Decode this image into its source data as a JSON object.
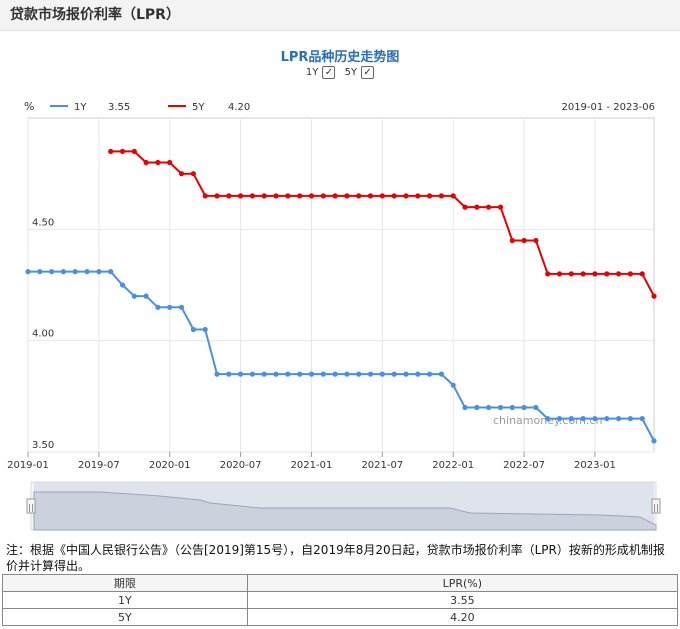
{
  "header": {
    "title": "贷款市场报价利率（LPR）"
  },
  "toggles": [
    {
      "label": "1Y",
      "checked": true
    },
    {
      "label": "5Y",
      "checked": true
    }
  ],
  "chart_data": {
    "type": "line",
    "title": "LPR品种历史走势图",
    "ylabel": "%",
    "date_range_label": "2019-01 - 2023-06",
    "ylim": [
      3.5,
      5.0
    ],
    "y_ticks": [
      "4.50",
      "4.00",
      "3.50"
    ],
    "x_ticks": [
      "2019-01",
      "2019-07",
      "2020-01",
      "2020-07",
      "2021-01",
      "2021-07",
      "2022-01",
      "2022-07",
      "2023-01"
    ],
    "watermark": "chinamoney.com.cn",
    "series": [
      {
        "name": "1Y",
        "legend_value": "3.55",
        "color": "#4a90e2",
        "x": [
          "2019-01",
          "2019-02",
          "2019-03",
          "2019-04",
          "2019-05",
          "2019-06",
          "2019-07",
          "2019-08",
          "2019-09",
          "2019-10",
          "2019-11",
          "2019-12",
          "2020-01",
          "2020-02",
          "2020-03",
          "2020-04",
          "2020-05",
          "2020-06",
          "2020-07",
          "2020-08",
          "2020-09",
          "2020-10",
          "2020-11",
          "2020-12",
          "2021-01",
          "2021-02",
          "2021-03",
          "2021-04",
          "2021-05",
          "2021-06",
          "2021-07",
          "2021-08",
          "2021-09",
          "2021-10",
          "2021-11",
          "2021-12",
          "2022-01",
          "2022-02",
          "2022-03",
          "2022-04",
          "2022-05",
          "2022-06",
          "2022-07",
          "2022-08",
          "2022-09",
          "2022-10",
          "2022-11",
          "2022-12",
          "2023-01",
          "2023-02",
          "2023-03",
          "2023-04",
          "2023-05",
          "2023-06"
        ],
        "values": [
          4.31,
          4.31,
          4.31,
          4.31,
          4.31,
          4.31,
          4.31,
          4.31,
          4.25,
          4.2,
          4.2,
          4.15,
          4.15,
          4.15,
          4.05,
          4.05,
          3.85,
          3.85,
          3.85,
          3.85,
          3.85,
          3.85,
          3.85,
          3.85,
          3.85,
          3.85,
          3.85,
          3.85,
          3.85,
          3.85,
          3.85,
          3.85,
          3.85,
          3.85,
          3.85,
          3.85,
          3.8,
          3.7,
          3.7,
          3.7,
          3.7,
          3.7,
          3.7,
          3.7,
          3.65,
          3.65,
          3.65,
          3.65,
          3.65,
          3.65,
          3.65,
          3.65,
          3.65,
          3.55
        ]
      },
      {
        "name": "5Y",
        "legend_value": "4.20",
        "color": "#e60000",
        "x": [
          "2019-08",
          "2019-09",
          "2019-10",
          "2019-11",
          "2019-12",
          "2020-01",
          "2020-02",
          "2020-03",
          "2020-04",
          "2020-05",
          "2020-06",
          "2020-07",
          "2020-08",
          "2020-09",
          "2020-10",
          "2020-11",
          "2020-12",
          "2021-01",
          "2021-02",
          "2021-03",
          "2021-04",
          "2021-05",
          "2021-06",
          "2021-07",
          "2021-08",
          "2021-09",
          "2021-10",
          "2021-11",
          "2021-12",
          "2022-01",
          "2022-02",
          "2022-03",
          "2022-04",
          "2022-05",
          "2022-06",
          "2022-07",
          "2022-08",
          "2022-09",
          "2022-10",
          "2022-11",
          "2022-12",
          "2023-01",
          "2023-02",
          "2023-03",
          "2023-04",
          "2023-05",
          "2023-06"
        ],
        "values": [
          4.85,
          4.85,
          4.85,
          4.8,
          4.8,
          4.8,
          4.75,
          4.75,
          4.65,
          4.65,
          4.65,
          4.65,
          4.65,
          4.65,
          4.65,
          4.65,
          4.65,
          4.65,
          4.65,
          4.65,
          4.65,
          4.65,
          4.65,
          4.65,
          4.65,
          4.65,
          4.65,
          4.65,
          4.65,
          4.65,
          4.6,
          4.6,
          4.6,
          4.6,
          4.45,
          4.45,
          4.45,
          4.3,
          4.3,
          4.3,
          4.3,
          4.3,
          4.3,
          4.3,
          4.3,
          4.3,
          4.2
        ]
      }
    ]
  },
  "footnote": "注：根据《中国人民银行公告》（公告[2019]第15号），自2019年8月20日起，贷款市场报价利率（LPR）按新的形成机制报价并计算得出。",
  "table": {
    "headers": [
      "期限",
      "LPR(%)"
    ],
    "rows": [
      [
        "1Y",
        "3.55"
      ],
      [
        "5Y",
        "4.20"
      ]
    ]
  }
}
